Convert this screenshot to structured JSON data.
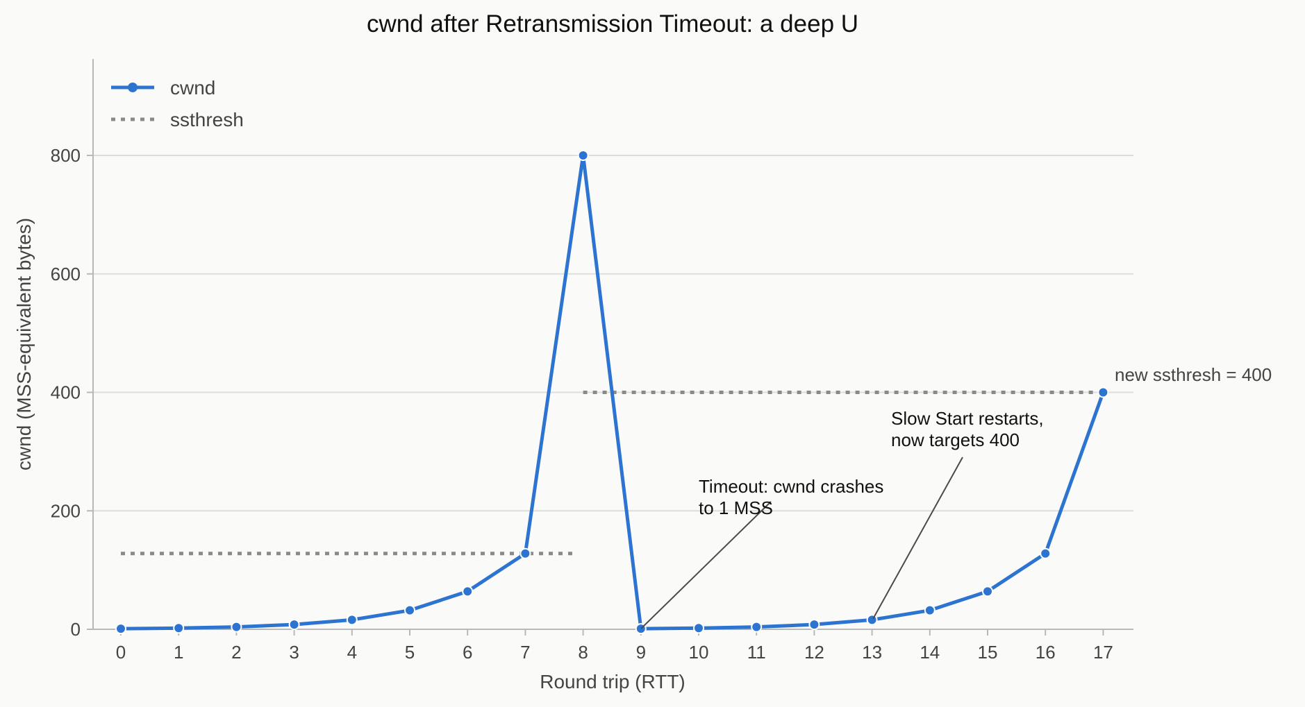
{
  "colors": {
    "background": "#fafaf8",
    "cwnd": "#2d74d0",
    "ssthresh": "#8a8a8a",
    "grid": "#dddddd",
    "axis": "#b8b8b8",
    "text": "#444444",
    "annotation": "#111111"
  },
  "chart_data": {
    "type": "line",
    "title": "cwnd after Retransmission Timeout: a deep U",
    "xlabel": "Round trip (RTT)",
    "ylabel": "cwnd (MSS-equivalent bytes)",
    "x": [
      0,
      1,
      2,
      3,
      4,
      5,
      6,
      7,
      8,
      9,
      10,
      11,
      12,
      13,
      14,
      15,
      16,
      17
    ],
    "x_ticks": [
      "0",
      "1",
      "2",
      "3",
      "4",
      "5",
      "6",
      "7",
      "8",
      "9",
      "10",
      "11",
      "12",
      "13",
      "14",
      "15",
      "16",
      "17"
    ],
    "y_ticks": [
      "0",
      "200",
      "400",
      "600",
      "800"
    ],
    "xlim": [
      -0.5,
      17.5
    ],
    "ylim": [
      0,
      960
    ],
    "grid": "horizontal",
    "legend_position": "top-left",
    "series": [
      {
        "name": "cwnd",
        "style": "solid line with circle markers",
        "x": [
          0,
          1,
          2,
          3,
          4,
          5,
          6,
          7,
          8,
          9,
          10,
          11,
          12,
          13,
          14,
          15,
          16,
          17
        ],
        "values": [
          1,
          2,
          4,
          8,
          16,
          32,
          64,
          128,
          800,
          1,
          2,
          4,
          8,
          16,
          32,
          64,
          128,
          400
        ]
      },
      {
        "name": "ssthresh",
        "style": "dotted line",
        "segments": [
          {
            "x": [
              0,
              7.85
            ],
            "y": 128
          },
          {
            "x": [
              8,
              17
            ],
            "y": 400
          }
        ]
      }
    ],
    "annotations": [
      {
        "text_lines": [
          "Timeout: cwnd crashes",
          "to 1 MSS"
        ],
        "points_to": {
          "x": 9,
          "y": 1
        }
      },
      {
        "text_lines": [
          "Slow Start restarts,",
          "now targets 400"
        ],
        "points_to": {
          "x": 13,
          "y": 16
        }
      },
      {
        "text_lines": [
          "new ssthresh = 400"
        ],
        "points_to": {
          "x": 17,
          "y": 400
        }
      }
    ]
  }
}
